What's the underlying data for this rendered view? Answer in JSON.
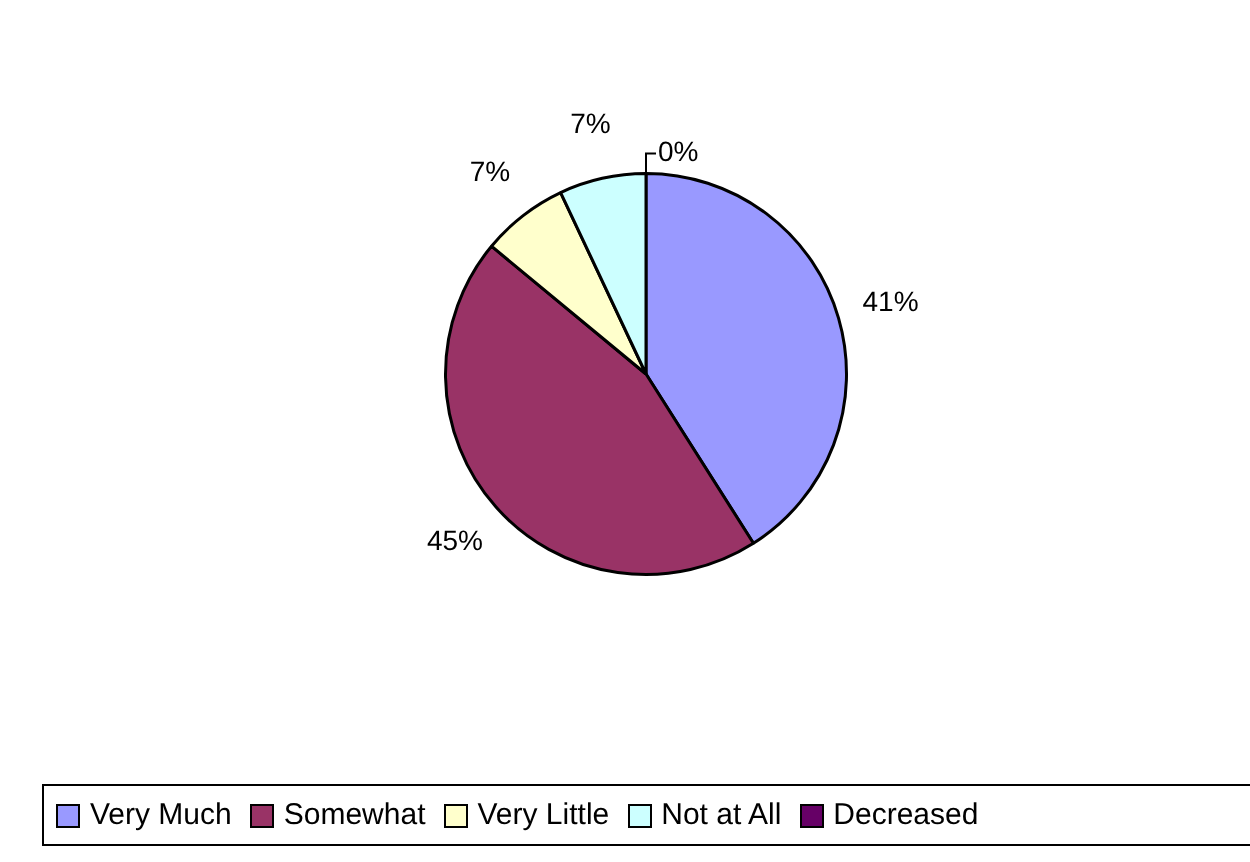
{
  "chart_data": {
    "type": "pie",
    "categories": [
      "Very Much",
      "Somewhat",
      "Very Little",
      "Not at All",
      "Decreased"
    ],
    "values": [
      41,
      45,
      7,
      7,
      0
    ],
    "colors": [
      "#9999ff",
      "#993366",
      "#ffffcc",
      "#ccffff",
      "#660066"
    ],
    "value_labels": [
      "41%",
      "45%",
      "7%",
      "7%",
      "0%"
    ],
    "legend": "bottom"
  }
}
